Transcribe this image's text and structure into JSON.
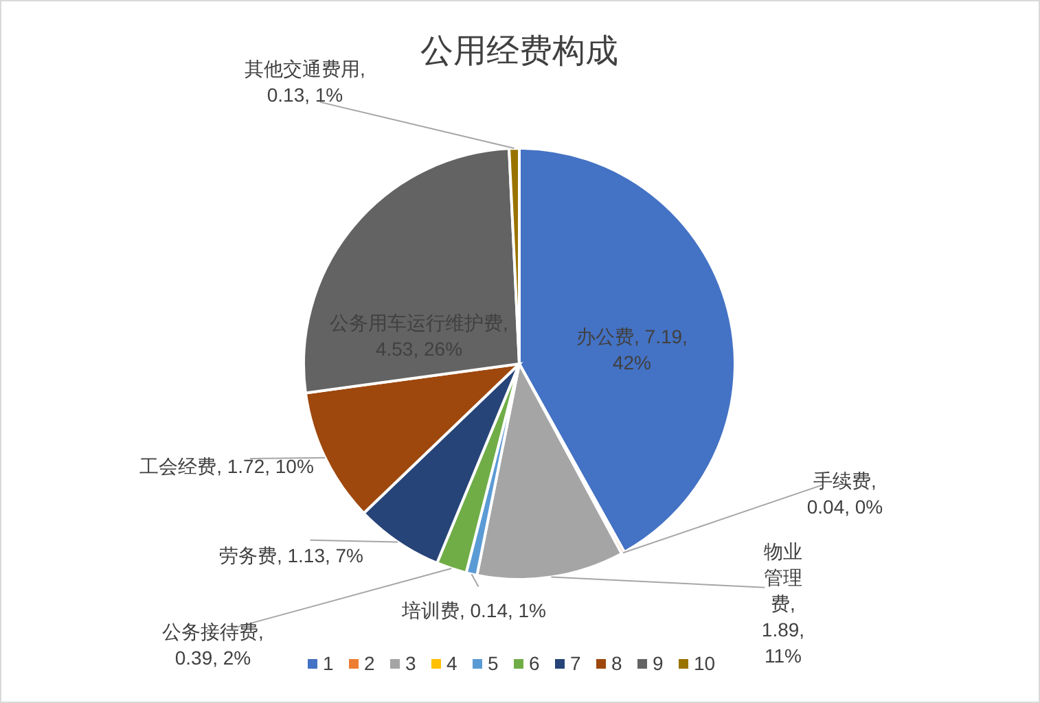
{
  "chart_data": {
    "type": "pie",
    "title": "公用经费构成",
    "categories": [
      "1",
      "2",
      "3",
      "4",
      "5",
      "6",
      "7",
      "8",
      "9",
      "10"
    ],
    "values": [
      7.19,
      0.04,
      1.89,
      0,
      0.14,
      0.39,
      1.13,
      1.72,
      4.53,
      0.13
    ],
    "colors": [
      "#4472c4",
      "#ed7d31",
      "#a5a5a5",
      "#ffc000",
      "#5b9bd5",
      "#70ad47",
      "#264478",
      "#9e480e",
      "#636363",
      "#997300"
    ],
    "value_labels": [
      "办公费, 7.19, 42%",
      "手续费, 0.04, 0%",
      "物业管理费, 1.89, 11%",
      null,
      "培训费, 0.14, 1%",
      "公务接待费, 0.39, 2%",
      "劳务费, 1.13, 7%",
      "工会经费, 1.72, 10%",
      "公务用车运行维护费, 4.53, 26%",
      "其他交通费用, 0.13, 1%"
    ],
    "legend": "bottom"
  }
}
